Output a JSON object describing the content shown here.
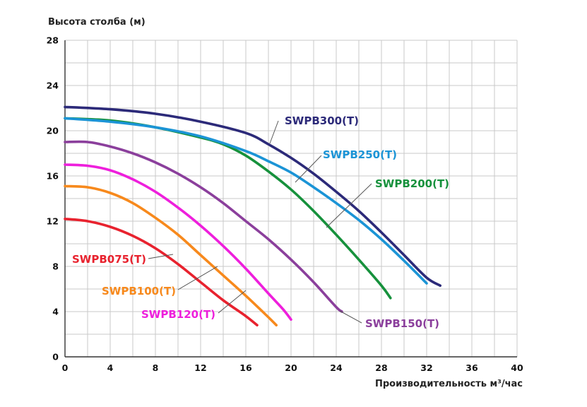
{
  "chart_data": {
    "type": "line",
    "ylabel": "Высота столба (м)",
    "xlabel": "Производительность м³/час",
    "xlim": [
      0,
      40
    ],
    "ylim": [
      0,
      28
    ],
    "x_ticks": [
      0,
      4,
      8,
      12,
      16,
      20,
      24,
      28,
      32,
      36,
      40
    ],
    "y_ticks": [
      0,
      4,
      8,
      12,
      16,
      20,
      24,
      28
    ],
    "grid": true,
    "series": [
      {
        "name": "SWPB075(T)",
        "color": "#e8222e",
        "points": [
          [
            0,
            12.2
          ],
          [
            2,
            12.0
          ],
          [
            4,
            11.5
          ],
          [
            6,
            10.7
          ],
          [
            8,
            9.6
          ],
          [
            10,
            8.2
          ],
          [
            12,
            6.6
          ],
          [
            14,
            5.0
          ],
          [
            16,
            3.6
          ],
          [
            17,
            2.8
          ]
        ]
      },
      {
        "name": "SWPB100(T)",
        "color": "#f7891c",
        "points": [
          [
            0,
            15.1
          ],
          [
            2,
            15.0
          ],
          [
            4,
            14.5
          ],
          [
            6,
            13.6
          ],
          [
            8,
            12.3
          ],
          [
            10,
            10.8
          ],
          [
            12,
            9.0
          ],
          [
            14,
            7.2
          ],
          [
            16,
            5.4
          ],
          [
            18,
            3.5
          ],
          [
            18.7,
            2.8
          ]
        ]
      },
      {
        "name": "SWPB120(T)",
        "color": "#ee1fdc",
        "points": [
          [
            0,
            17.0
          ],
          [
            2,
            16.9
          ],
          [
            4,
            16.5
          ],
          [
            6,
            15.7
          ],
          [
            8,
            14.6
          ],
          [
            10,
            13.2
          ],
          [
            12,
            11.6
          ],
          [
            14,
            9.8
          ],
          [
            16,
            7.8
          ],
          [
            18,
            5.6
          ],
          [
            19.3,
            4.2
          ],
          [
            20,
            3.3
          ]
        ]
      },
      {
        "name": "SWPB150(T)",
        "color": "#8b3f9c",
        "points": [
          [
            0,
            19.0
          ],
          [
            2,
            19.0
          ],
          [
            4,
            18.6
          ],
          [
            6,
            18.0
          ],
          [
            8,
            17.2
          ],
          [
            10,
            16.2
          ],
          [
            12,
            15.0
          ],
          [
            14,
            13.6
          ],
          [
            16,
            12.0
          ],
          [
            18,
            10.4
          ],
          [
            20,
            8.6
          ],
          [
            22,
            6.6
          ],
          [
            24,
            4.4
          ],
          [
            24.5,
            4.0
          ]
        ]
      },
      {
        "name": "SWPB200(T)",
        "color": "#16913c",
        "points": [
          [
            0,
            21.1
          ],
          [
            4,
            20.9
          ],
          [
            8,
            20.3
          ],
          [
            12,
            19.4
          ],
          [
            14,
            18.8
          ],
          [
            16,
            17.8
          ],
          [
            18,
            16.4
          ],
          [
            20,
            14.8
          ],
          [
            22,
            12.9
          ],
          [
            24,
            10.8
          ],
          [
            26,
            8.6
          ],
          [
            28,
            6.3
          ],
          [
            28.8,
            5.2
          ]
        ]
      },
      {
        "name": "SWPB250(T)",
        "color": "#1b94d6",
        "points": [
          [
            0,
            21.1
          ],
          [
            4,
            20.8
          ],
          [
            8,
            20.3
          ],
          [
            12,
            19.5
          ],
          [
            16,
            18.2
          ],
          [
            18,
            17.3
          ],
          [
            20,
            16.3
          ],
          [
            22,
            15.0
          ],
          [
            24,
            13.6
          ],
          [
            26,
            12.1
          ],
          [
            28,
            10.4
          ],
          [
            30,
            8.5
          ],
          [
            32,
            6.5
          ]
        ]
      },
      {
        "name": "SWPB300(T)",
        "color": "#2c2a79",
        "points": [
          [
            0,
            22.1
          ],
          [
            4,
            21.9
          ],
          [
            8,
            21.5
          ],
          [
            12,
            20.8
          ],
          [
            16,
            19.8
          ],
          [
            18,
            18.8
          ],
          [
            20,
            17.6
          ],
          [
            22,
            16.2
          ],
          [
            24,
            14.6
          ],
          [
            26,
            12.9
          ],
          [
            28,
            11.0
          ],
          [
            30,
            9.0
          ],
          [
            32,
            7.0
          ],
          [
            33.2,
            6.3
          ]
        ]
      }
    ],
    "annotations": [
      {
        "series": "SWPB300(T)",
        "text": "SWPB300(T)"
      },
      {
        "series": "SWPB250(T)",
        "text": "SWPB250(T)"
      },
      {
        "series": "SWPB200(T)",
        "text": "SWPB200(T)"
      },
      {
        "series": "SWPB150(T)",
        "text": "SWPB150(T)"
      },
      {
        "series": "SWPB120(T)",
        "text": "SWPB120(T)"
      },
      {
        "series": "SWPB100(T)",
        "text": "SWPB100(T)"
      },
      {
        "series": "SWPB075(T)",
        "text": "SWPB075(T)"
      }
    ]
  }
}
